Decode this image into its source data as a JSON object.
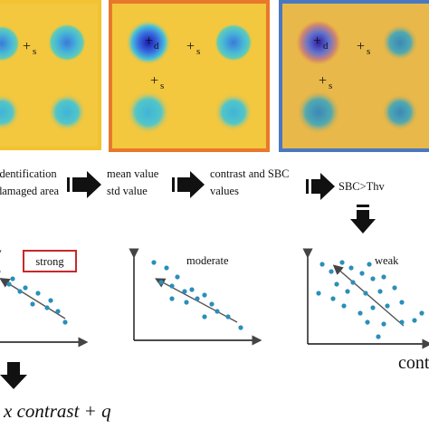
{
  "panels": [
    {
      "frame_color": "#f2c230",
      "markers": [
        "s"
      ]
    },
    {
      "frame_color": "#e8782a",
      "markers": [
        "d",
        "s",
        "s"
      ]
    },
    {
      "frame_color": "#4a78c0",
      "markers": [
        "d",
        "s",
        "s"
      ]
    }
  ],
  "steps": {
    "step1_line1": "identification",
    "step1_line2": "damaged area",
    "step2_line1": "mean value",
    "step2_line2": "std value",
    "step3_line1": "contrast and SBC",
    "step3_line2": "values",
    "step4": "SBC>Thv"
  },
  "plots": [
    {
      "label": "strong",
      "box_color": "#c8282a"
    },
    {
      "label": "moderate"
    },
    {
      "label": "weak"
    }
  ],
  "bottom_right_text": "contrast",
  "formula": "x contrast + q",
  "colors": {
    "dot": "#2a8fb8",
    "line": "#555555",
    "background": "#f6cc40"
  }
}
